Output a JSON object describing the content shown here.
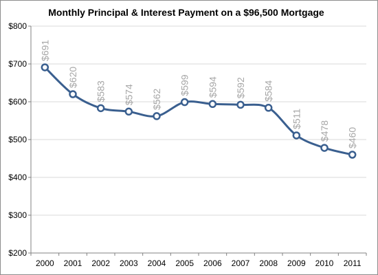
{
  "chart_data": {
    "type": "line",
    "title": "Monthly Principal & Interest Payment on a $96,500 Mortgage",
    "xlabel": "",
    "ylabel": "",
    "categories": [
      "2000",
      "2001",
      "2002",
      "2003",
      "2004",
      "2005",
      "2006",
      "2007",
      "2008",
      "2009",
      "2010",
      "2011"
    ],
    "series": [
      {
        "values": [
          691,
          620,
          583,
          574,
          562,
          599,
          594,
          592,
          584,
          511,
          478,
          460
        ],
        "data_labels": [
          "$691",
          "$620",
          "$583",
          "$574",
          "$562",
          "$599",
          "$594",
          "$592",
          "$584",
          "$511",
          "$478",
          "$460"
        ]
      }
    ],
    "ylim": [
      200,
      800
    ],
    "yticks": [
      200,
      300,
      400,
      500,
      600,
      700,
      800
    ],
    "ytick_labels": [
      "$200",
      "$300",
      "$400",
      "$500",
      "$600",
      "$700",
      "$800"
    ],
    "grid": "horizontal",
    "smooth": true,
    "line_color": "#3A5F8F",
    "marker": "open-circle",
    "marker_fill": "#ffffff",
    "label_color": "#A6A6A6",
    "data_label_rotation": "vertical",
    "legend": "none"
  }
}
